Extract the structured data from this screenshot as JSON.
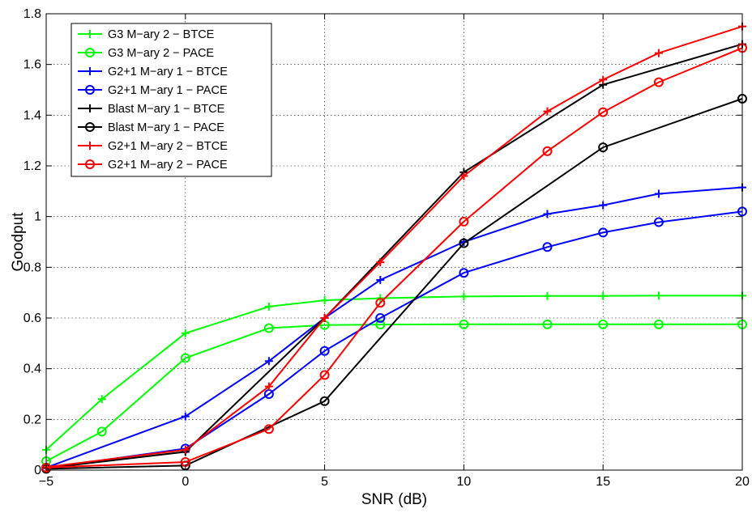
{
  "chart_data": {
    "type": "line",
    "xlabel": "SNR (dB)",
    "ylabel": "Goodput",
    "xlim": [
      -5,
      20
    ],
    "ylim": [
      0,
      1.8
    ],
    "xticks": [
      -5,
      0,
      5,
      10,
      15,
      20
    ],
    "yticks": [
      0,
      0.2,
      0.4,
      0.6,
      0.8,
      1,
      1.2,
      1.4,
      1.6,
      1.8
    ],
    "xtick_labels": [
      "−5",
      "0",
      "5",
      "10",
      "15",
      "20"
    ],
    "ytick_labels": [
      "0",
      "0.2",
      "0.4",
      "0.6",
      "0.8",
      "1",
      "1.2",
      "1.4",
      "1.6",
      "1.8"
    ],
    "grid": "dotted",
    "legend_position": "top-left",
    "series": [
      {
        "name": "G3 M−ary 2 − BTCE",
        "color": "#00ff00",
        "marker": "plus",
        "x": [
          -5,
          -3,
          0,
          3,
          5,
          7,
          10,
          13,
          15,
          17,
          20
        ],
        "y": [
          0.08,
          0.28,
          0.54,
          0.645,
          0.67,
          0.678,
          0.685,
          0.687,
          0.687,
          0.688,
          0.688
        ]
      },
      {
        "name": "G3 M−ary 2 − PACE",
        "color": "#00ff00",
        "marker": "circle",
        "x": [
          -5,
          -3,
          0,
          3,
          5,
          7,
          10,
          13,
          15,
          17,
          20
        ],
        "y": [
          0.035,
          0.152,
          0.442,
          0.56,
          0.572,
          0.574,
          0.575,
          0.575,
          0.575,
          0.575,
          0.575
        ]
      },
      {
        "name": "G2+1 M−ary 1 − BTCE",
        "color": "#0000ff",
        "marker": "plus",
        "x": [
          -5,
          0,
          3,
          5,
          7,
          10,
          13,
          15,
          17,
          20
        ],
        "y": [
          0.01,
          0.212,
          0.43,
          0.6,
          0.75,
          0.9,
          1.01,
          1.045,
          1.09,
          1.115
        ]
      },
      {
        "name": "G2+1 M−ary 1 − PACE",
        "color": "#0000ff",
        "marker": "circle",
        "x": [
          -5,
          0,
          3,
          5,
          7,
          10,
          13,
          15,
          17,
          20
        ],
        "y": [
          0.008,
          0.085,
          0.3,
          0.47,
          0.6,
          0.778,
          0.88,
          0.937,
          0.978,
          1.02
        ]
      },
      {
        "name": "Blast M−ary 1 − BTCE",
        "color": "#000000",
        "marker": "plus",
        "x": [
          -5,
          0,
          5,
          10,
          15,
          20
        ],
        "y": [
          0.008,
          0.072,
          0.6,
          1.175,
          1.52,
          1.68
        ]
      },
      {
        "name": "Blast M−ary 1 − PACE",
        "color": "#000000",
        "marker": "circle",
        "x": [
          -5,
          0,
          5,
          10,
          15,
          20
        ],
        "y": [
          0.005,
          0.018,
          0.272,
          0.895,
          1.273,
          1.465
        ]
      },
      {
        "name": "G2+1 M−ary 2 − BTCE",
        "color": "#ff0000",
        "marker": "plus",
        "x": [
          -5,
          0,
          3,
          5,
          7,
          10,
          13,
          15,
          17,
          20
        ],
        "y": [
          0.012,
          0.08,
          0.33,
          0.6,
          0.82,
          1.16,
          1.415,
          1.54,
          1.645,
          1.75
        ]
      },
      {
        "name": "G2+1 M−ary 2 − PACE",
        "color": "#ff0000",
        "marker": "circle",
        "x": [
          -5,
          0,
          3,
          5,
          7,
          10,
          13,
          15,
          17,
          20
        ],
        "y": [
          0.01,
          0.032,
          0.162,
          0.375,
          0.66,
          0.98,
          1.258,
          1.412,
          1.53,
          1.665
        ]
      }
    ]
  }
}
